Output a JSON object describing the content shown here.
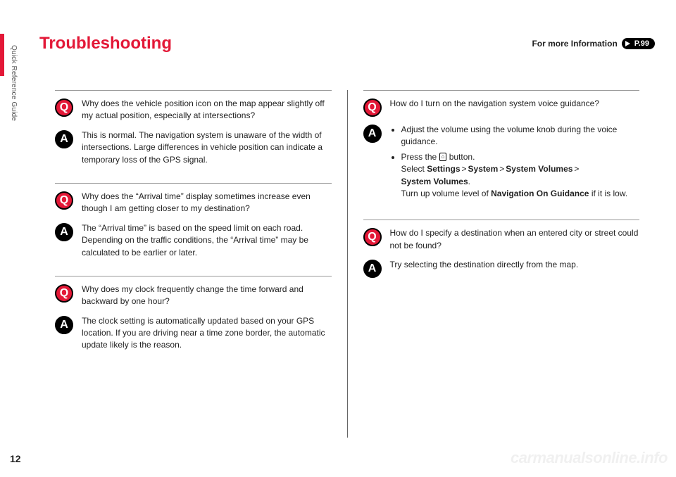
{
  "sideTab": {
    "label": "Quick Reference Guide"
  },
  "pageNumber": "12",
  "header": {
    "title": "Troubleshooting",
    "infoLabel": "For more Information",
    "infoPage": "P.99"
  },
  "columns": [
    {
      "items": [
        {
          "q": "Why does the vehicle position icon on the map appear slightly off my actual position, especially at intersections?",
          "a": {
            "type": "text",
            "text": "This is normal. The navigation system is unaware of the width of intersections. Large differences in vehicle position can indicate a temporary loss of the GPS signal."
          }
        },
        {
          "q": "Why does the “Arrival time” display sometimes increase even though I am getting closer to my destination?",
          "a": {
            "type": "text",
            "text": "The “Arrival time” is based on the speed limit on each road. Depending on the traffic conditions, the “Arrival time” may be calculated to be earlier or later."
          }
        },
        {
          "q": "Why does my clock frequently change the time forward and backward by one hour?",
          "a": {
            "type": "text",
            "text": "The clock setting is automatically updated based on your GPS location. If you are driving near a time zone border, the automatic update likely is the reason."
          }
        }
      ]
    },
    {
      "items": [
        {
          "q": "How do I turn on the navigation system voice guidance?",
          "a": {
            "type": "volume",
            "bullet1": "Adjust the volume using the volume knob during the voice guidance.",
            "bullet2_pre": "Press the ",
            "bullet2_post": " button.",
            "path_select": "Select ",
            "path_s1": "Settings",
            "path_s2": "System",
            "path_s3": "System Volumes",
            "path_s4": "System Volumes",
            "turnup_pre": "Turn up volume level of ",
            "turnup_bold": "Navigation On Guidance",
            "turnup_post": " if it is low."
          }
        },
        {
          "q": "How do I specify a destination when an entered city or street could not be found?",
          "a": {
            "type": "text",
            "text": "Try selecting the destination directly from the map."
          }
        }
      ]
    }
  ],
  "watermark": "carmanualsonline.info",
  "icons": {
    "home": "⌂"
  }
}
